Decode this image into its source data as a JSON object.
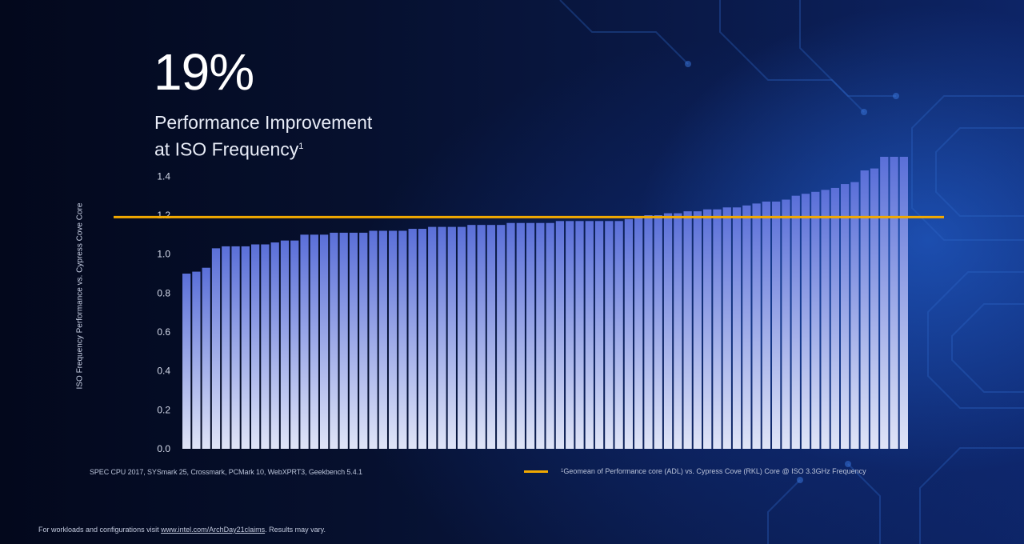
{
  "headline": {
    "stat": "19%",
    "line1": "Performance Improvement",
    "line2": "at ISO Frequency",
    "footnote_marker": "1"
  },
  "chart_data": {
    "type": "bar",
    "title": "19% Performance Improvement at ISO Frequency",
    "ylabel": "ISO Frequency Performance vs. Cypress Cove Core",
    "xlabel": "",
    "ylim": [
      0,
      1.5
    ],
    "yticks": [
      0.0,
      0.2,
      0.4,
      0.6,
      0.8,
      1.0,
      1.2,
      1.4
    ],
    "ytick_labels": [
      "0.0",
      "0.2",
      "0.4",
      "0.6",
      "0.8",
      "1.0",
      "1.2",
      "1.4"
    ],
    "grid": false,
    "values": [
      0.9,
      0.91,
      0.93,
      1.03,
      1.04,
      1.04,
      1.04,
      1.05,
      1.05,
      1.06,
      1.07,
      1.07,
      1.1,
      1.1,
      1.1,
      1.11,
      1.11,
      1.11,
      1.11,
      1.12,
      1.12,
      1.12,
      1.12,
      1.13,
      1.13,
      1.14,
      1.14,
      1.14,
      1.14,
      1.15,
      1.15,
      1.15,
      1.15,
      1.16,
      1.16,
      1.16,
      1.16,
      1.16,
      1.17,
      1.17,
      1.17,
      1.17,
      1.17,
      1.17,
      1.17,
      1.18,
      1.19,
      1.2,
      1.2,
      1.21,
      1.21,
      1.22,
      1.22,
      1.23,
      1.23,
      1.24,
      1.24,
      1.25,
      1.26,
      1.27,
      1.27,
      1.28,
      1.3,
      1.31,
      1.32,
      1.33,
      1.34,
      1.36,
      1.37,
      1.43,
      1.44,
      1.5,
      1.5,
      1.5
    ],
    "reference_line": {
      "value": 1.19,
      "color": "#f2a900",
      "label": "Geomean of Performance core (ADL) vs. Cypress Cove (RKL) Core @ ISO 3.3GHz Frequency"
    },
    "bar_color_top": "#5a6fd8",
    "bar_color_bottom": "#dfe4f7"
  },
  "sources_text": "SPEC CPU 2017, SYSmark 25, Crossmark, PCMark 10, WebXPRT3, Geekbench 5.4.1",
  "legend": {
    "marker": "1",
    "text": "Geomean of Performance core (ADL) vs. Cypress Cove (RKL) Core @ ISO 3.3GHz Frequency"
  },
  "footnote": {
    "prefix": "For workloads and configurations visit ",
    "link": "www.intel.com/ArchDay21claims",
    "suffix": ". Results may vary."
  },
  "colors": {
    "accent": "#f2a900",
    "background": "#06102e"
  }
}
